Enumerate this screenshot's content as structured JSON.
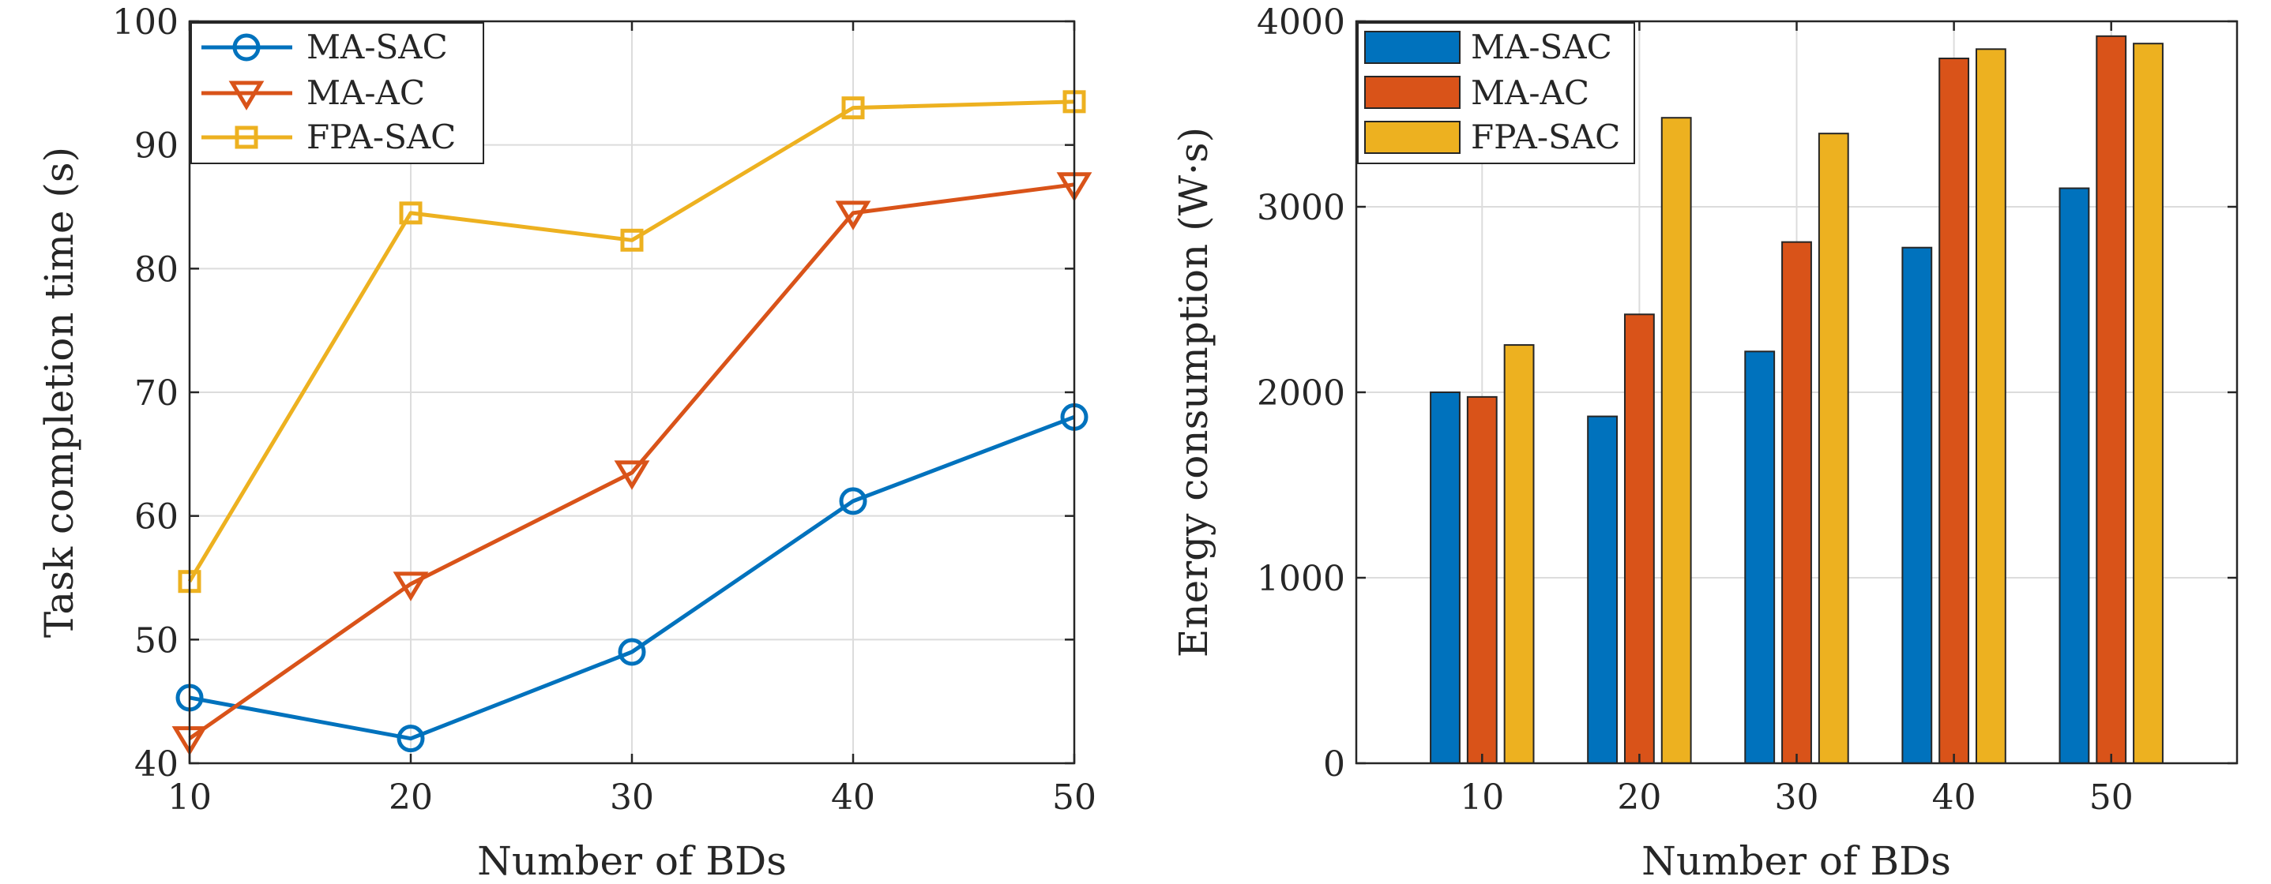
{
  "chart_data": [
    {
      "type": "line",
      "xlabel": "Number of BDs",
      "ylabel": "Task completion time (s)",
      "x": [
        10,
        20,
        30,
        40,
        50
      ],
      "xlim": [
        10,
        50
      ],
      "ylim": [
        40,
        100
      ],
      "xticks": [
        "10",
        "20",
        "30",
        "40",
        "50"
      ],
      "yticks": [
        "40",
        "50",
        "60",
        "70",
        "80",
        "90",
        "100"
      ],
      "grid": true,
      "legend_position": "top-left",
      "series": [
        {
          "name": "MA-SAC",
          "values": [
            45.3,
            42.0,
            49.0,
            61.2,
            68.0
          ],
          "color": "#0072BD",
          "marker": "circle"
        },
        {
          "name": "MA-AC",
          "values": [
            42.0,
            54.5,
            63.5,
            84.5,
            86.8
          ],
          "color": "#D95319",
          "marker": "triangle-down"
        },
        {
          "name": "FPA-SAC",
          "values": [
            54.7,
            84.5,
            82.3,
            93.0,
            93.5
          ],
          "color": "#EDB120",
          "marker": "square"
        }
      ]
    },
    {
      "type": "bar",
      "xlabel": "Number of BDs",
      "ylabel": "Energy consumption (W·s)",
      "categories": [
        "10",
        "20",
        "30",
        "40",
        "50"
      ],
      "ylim": [
        0,
        4000
      ],
      "yticks": [
        "0",
        "1000",
        "2000",
        "3000",
        "4000"
      ],
      "grid": true,
      "legend_position": "top-left",
      "series": [
        {
          "name": "MA-SAC",
          "values": [
            2000,
            1870,
            2220,
            2780,
            3100
          ],
          "color": "#0072BD"
        },
        {
          "name": "MA-AC",
          "values": [
            1975,
            2420,
            2810,
            3800,
            3920
          ],
          "color": "#D95319"
        },
        {
          "name": "FPA-SAC",
          "values": [
            2255,
            3480,
            3395,
            3850,
            3880
          ],
          "color": "#EDB120"
        }
      ]
    }
  ]
}
